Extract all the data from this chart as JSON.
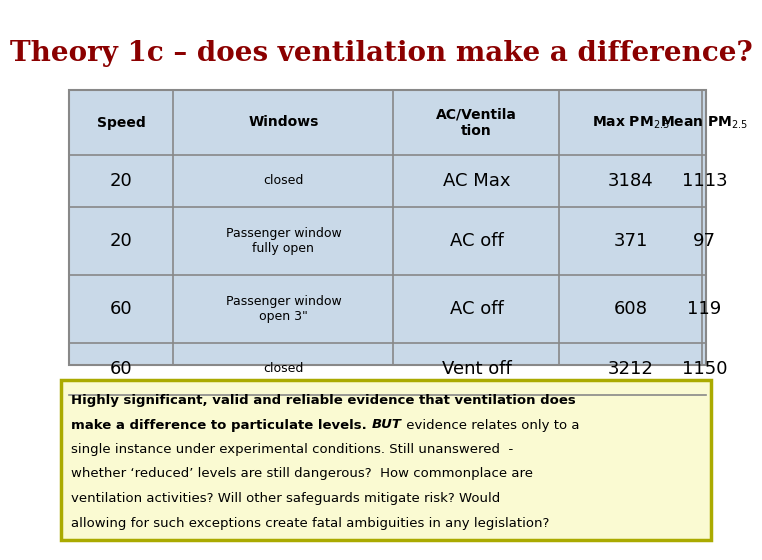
{
  "title": "Theory 1c – does ventilation make a difference?",
  "title_color": "#8B0000",
  "title_fontsize": 20,
  "bg_color": "#FFFFFF",
  "table_bg": "#C9D9E8",
  "note_bg": "#FAFAD2",
  "note_border": "#AAAA00",
  "col_headers": [
    "Speed",
    "Windows",
    "AC/Ventila\ntion",
    "Max PM$_{2.5}$",
    "Mean PM$_{2.5}$"
  ],
  "rows": [
    [
      "20",
      "closed",
      "AC Max",
      "3184",
      "1113"
    ],
    [
      "20",
      "Passenger window\nfully open",
      "AC off",
      "371",
      "97"
    ],
    [
      "60",
      "Passenger window\nopen 3\"",
      "AC off",
      "608",
      "119"
    ],
    [
      "60",
      "closed",
      "Vent off",
      "3212",
      "1150"
    ]
  ],
  "note_bold1": "Highly significant, valid and reliable evidence that ventilation does",
  "note_bold2": "make a difference to particulate levels.",
  "note_italic": "BUT",
  "note_normal": " evidence relates only to a\nsingle instance under experimental conditions. Still unanswered  -\nwhether ‘reduced’ levels are still dangerous?  How commonplace are\nventilation activities? Will other safeguards mitigate risk? Would\nallowing for such exceptions create fatal ambiguities in any legislation?"
}
